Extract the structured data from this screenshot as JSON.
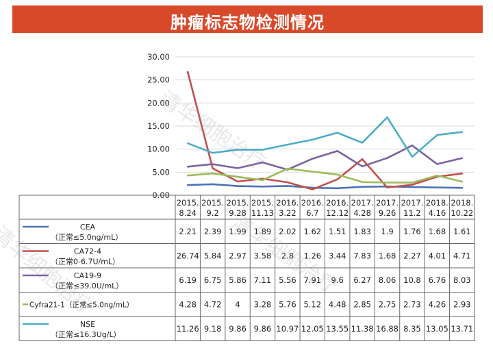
{
  "title": "肿瘤标志物检测情况",
  "watermark": "清华细胞治疗",
  "chart_data": {
    "type": "line",
    "ylim": [
      0,
      30
    ],
    "yticks": [
      "0.00",
      "5.00",
      "10.00",
      "15.00",
      "20.00",
      "25.00",
      "30.00"
    ],
    "grid": true,
    "categories": [
      [
        "2015.",
        "8.24"
      ],
      [
        "2015.",
        "9.2"
      ],
      [
        "2015.",
        "9.28"
      ],
      [
        "2015.",
        "11.13"
      ],
      [
        "2016.",
        "3.22"
      ],
      [
        "2016.",
        "6.7"
      ],
      [
        "2016.",
        "12.12"
      ],
      [
        "2017.",
        "4.28"
      ],
      [
        "2017.",
        "9.26"
      ],
      [
        "2017.",
        "11.2"
      ],
      [
        "2018.",
        "4.16"
      ],
      [
        "2018.",
        "10.22"
      ]
    ],
    "series": [
      {
        "name": "CEA",
        "sub": "（正常≤5.0ng/mL）",
        "color": "#4a73b5",
        "values": [
          2.21,
          2.39,
          1.99,
          1.89,
          2.02,
          1.62,
          1.51,
          1.83,
          1.9,
          1.76,
          1.68,
          1.61
        ],
        "labels": [
          "2.21",
          "2.39",
          "1.99",
          "1.89",
          "2.02",
          "1.62",
          "1.51",
          "1.83",
          "1.9",
          "1.76",
          "1.68",
          "1.61"
        ]
      },
      {
        "name": "CA72-4",
        "sub": "（正常0-6.7U/mL）",
        "color": "#c0504d",
        "values": [
          26.74,
          5.84,
          2.97,
          3.58,
          2.8,
          1.26,
          3.44,
          7.83,
          1.68,
          2.27,
          4.01,
          4.71
        ],
        "labels": [
          "26.74",
          "5.84",
          "2.97",
          "3.58",
          "2.8",
          "1.26",
          "3.44",
          "7.83",
          "1.68",
          "2.27",
          "4.01",
          "4.71"
        ]
      },
      {
        "name": "CA19-9",
        "sub": "（正常≤39.0U/mL）",
        "color": "#7d60a0",
        "values": [
          6.19,
          6.75,
          5.86,
          7.11,
          5.56,
          7.91,
          9.6,
          6.27,
          8.06,
          10.8,
          6.76,
          8.03
        ],
        "labels": [
          "6.19",
          "6.75",
          "5.86",
          "7.11",
          "5.56",
          "7.91",
          "9.6",
          "6.27",
          "8.06",
          "10.8",
          "6.76",
          "8.03"
        ]
      },
      {
        "name": "Cyfra21-1（正常≤5.0ng/mL）",
        "sub": "",
        "color": "#9bbb59",
        "values": [
          4.28,
          4.72,
          4,
          3.28,
          5.76,
          5.12,
          4.48,
          2.85,
          2.75,
          2.73,
          4.26,
          2.93
        ],
        "labels": [
          "4.28",
          "4.72",
          "4",
          "3.28",
          "5.76",
          "5.12",
          "4.48",
          "2.85",
          "2.75",
          "2.73",
          "4.26",
          "2.93"
        ]
      },
      {
        "name": "NSE",
        "sub": "（正常≤16.3Ug/L）",
        "color": "#4bacc6",
        "values": [
          11.26,
          9.18,
          9.86,
          9.86,
          10.97,
          12.05,
          13.55,
          11.38,
          16.88,
          8.35,
          13.05,
          13.71
        ],
        "labels": [
          "11.26",
          "9.18",
          "9.86",
          "9.86",
          "10.97",
          "12.05",
          "13.55",
          "11.38",
          "16.88",
          "8.35",
          "13.05",
          "13.71"
        ]
      }
    ]
  }
}
